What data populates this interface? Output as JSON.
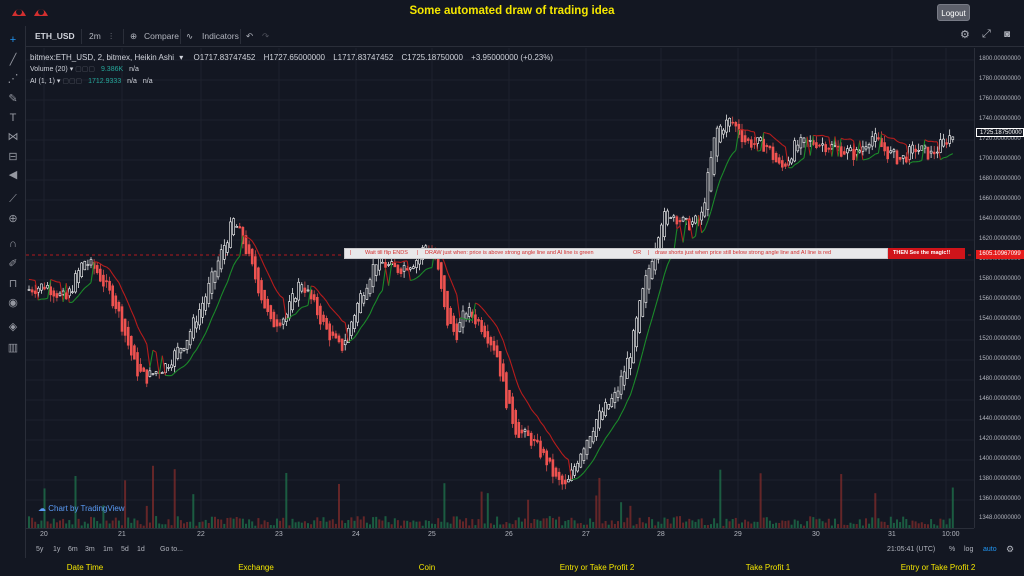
{
  "app": {
    "title": "Some automated draw of trading idea",
    "logout_label": "Logout"
  },
  "toolbar": {
    "symbol": "ETH_USD",
    "interval": "2m",
    "compare_label": "Compare",
    "indicators_label": "Indicators"
  },
  "legend": {
    "main": "bitmex:ETH_USD, 2, bitmex, Heikin Ashi",
    "open": "O1717.83747452",
    "high": "H1727.65000000",
    "low": "L1717.83747452",
    "close": "C1725.18750000",
    "change": "+3.95000000 (+0.23%)",
    "volume_label": "Volume (20)",
    "volume_value": "9.386K",
    "volume_na": "n/a",
    "ai_label": "AI (1, 1)",
    "ai_value": "1712.9333",
    "ai_na1": "n/a",
    "ai_na2": "n/a"
  },
  "annotation": {
    "t1": "Wait till flip ENDS",
    "t2": "DRAW just when:  price is above strong angle line and AI line is green",
    "t3": "OR",
    "t4": "draw shorts just when price still below strong angle line and AI line is red",
    "t5": "THEN See the magic!!"
  },
  "badge": "Chart by TradingView",
  "price_axis": {
    "ticks": [
      "1800.00000000",
      "1780.00000000",
      "1760.00000000",
      "1740.00000000",
      "1720.00000000",
      "1700.00000000",
      "1680.00000000",
      "1660.00000000",
      "1640.00000000",
      "1620.00000000",
      "1600.00000000",
      "1580.00000000",
      "1560.00000000",
      "1540.00000000",
      "1520.00000000",
      "1500.00000000",
      "1480.00000000",
      "1460.00000000",
      "1440.00000000",
      "1420.00000000",
      "1400.00000000",
      "1380.00000000",
      "1360.00000000",
      "1348.00000000"
    ],
    "last_price": "1725.18750000",
    "line_price": "1605.10967099"
  },
  "time_axis": {
    "ticks": [
      "20",
      "21",
      "22",
      "23",
      "24",
      "25",
      "26",
      "27",
      "28",
      "29",
      "30",
      "31",
      "10:00"
    ]
  },
  "bottom": {
    "ranges": [
      "5y",
      "1y",
      "6m",
      "3m",
      "1m",
      "5d",
      "1d"
    ],
    "goto": "Go to...",
    "clock": "21:05:41 (UTC)",
    "pct": "%",
    "log": "log",
    "auto": "auto"
  },
  "footer": {
    "columns": [
      "Date Time",
      "Exchange",
      "Coin",
      "Entry or Take Profit 2",
      "Take Profit 1",
      "Entry or Take Profit 2"
    ]
  },
  "colors": {
    "background": "#131722",
    "accent_yellow": "#f5e700",
    "candle_up": "#ffffff",
    "candle_down": "#ef5350",
    "ai_green": "#1b8a2a",
    "ai_red": "#b71c1c"
  },
  "chart_data": {
    "type": "candlestick",
    "title": "",
    "ylim": [
      1340,
      1810
    ],
    "x": [
      "20",
      "21",
      "22",
      "23",
      "24",
      "25",
      "26",
      "27",
      "28",
      "29",
      "30",
      "31",
      "10:00"
    ],
    "series_close": [
      1572,
      1590,
      1560,
      1520,
      1500,
      1540,
      1620,
      1580,
      1560,
      1598,
      1600,
      1570,
      1540,
      1500,
      1470,
      1420,
      1390,
      1380,
      1440,
      1490,
      1560,
      1620,
      1650,
      1640,
      1720,
      1740,
      1720,
      1715,
      1710,
      1705,
      1715,
      1725
    ]
  }
}
